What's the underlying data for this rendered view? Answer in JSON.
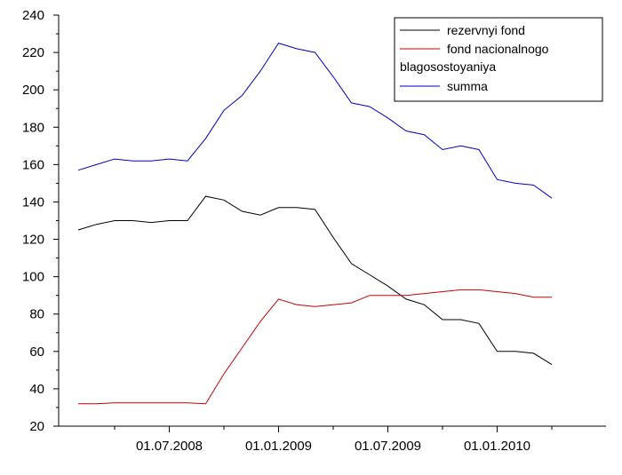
{
  "chart_data": {
    "type": "line",
    "title": "",
    "xlabel": "",
    "ylabel": "",
    "ylim": [
      20,
      240
    ],
    "yticks": [
      20,
      40,
      60,
      80,
      100,
      120,
      140,
      160,
      180,
      200,
      220,
      240
    ],
    "xtick_labels": [
      "01.07.2008",
      "01.01.2009",
      "01.07.2009",
      "01.01.2010"
    ],
    "x": [
      "01.02.2008",
      "01.03.2008",
      "01.04.2008",
      "01.05.2008",
      "01.06.2008",
      "01.07.2008",
      "01.08.2008",
      "01.09.2008",
      "01.10.2008",
      "01.11.2008",
      "01.12.2008",
      "01.01.2009",
      "01.02.2009",
      "01.03.2009",
      "01.04.2009",
      "01.05.2009",
      "01.06.2009",
      "01.07.2009",
      "01.08.2009",
      "01.09.2009",
      "01.10.2009",
      "01.11.2009",
      "01.12.2009",
      "01.01.2010",
      "01.02.2010",
      "01.03.2010",
      "01.04.2010"
    ],
    "series": [
      {
        "name": "rezervnyi fond",
        "color": "#000000",
        "values": [
          125,
          128,
          130,
          130,
          129,
          130,
          130,
          143,
          141,
          135,
          133,
          137,
          137,
          136,
          121,
          107,
          101,
          95,
          88,
          85,
          77,
          77,
          75,
          60,
          60,
          59,
          53
        ]
      },
      {
        "name": "fond nacionalnogo blagosostoyaniya",
        "color": "#cc0000",
        "values": [
          32,
          32,
          32.5,
          32.5,
          32.5,
          32.5,
          32.5,
          32,
          48,
          62,
          76,
          88,
          85,
          84,
          85,
          86,
          90,
          90,
          90,
          91,
          92,
          93,
          93,
          92,
          91,
          89,
          89
        ]
      },
      {
        "name": "summa",
        "color": "#0000cc",
        "values": [
          157,
          160,
          163,
          162,
          162,
          163,
          162,
          174,
          189,
          197,
          210,
          225,
          222,
          220,
          207,
          193,
          191,
          185,
          178,
          176,
          168,
          170,
          168,
          152,
          150,
          149,
          142
        ]
      }
    ],
    "legend": {
      "position": "top-right",
      "lines": [
        "rezervnyi fond",
        "fond nacionalnogo",
        "blagosostoyaniya",
        "summa"
      ]
    },
    "grid": false
  }
}
